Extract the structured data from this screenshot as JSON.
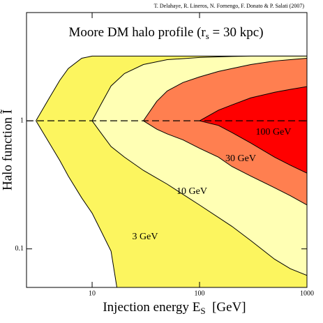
{
  "chart_data": {
    "type": "band",
    "credit": "T. Delahaye, R. Lineros, N. Fornengo, F. Donato & P. Salati (2007)",
    "title": [
      "Moore DM halo profile (r",
      "s",
      " = 30 kpc)"
    ],
    "x_label": [
      "Injection energy E",
      "S",
      "  [GeV]"
    ],
    "y_label": "Halo function Ĩ",
    "log_x": true,
    "log_y": true,
    "xlim": [
      2.45,
      1000
    ],
    "ylim": [
      0.05,
      7
    ],
    "xticks": [
      10,
      100,
      1000
    ],
    "yticks": [
      0.1,
      1
    ],
    "reference_line": 1,
    "x": [
      3,
      4,
      5,
      6,
      8,
      10,
      12,
      15,
      17,
      20,
      30,
      40,
      50,
      70,
      100,
      150,
      200,
      300,
      500,
      700,
      1000
    ],
    "series": [
      {
        "name": "3 GeV",
        "color": "#fcf55f",
        "upper": [
          1,
          1.51,
          2.07,
          2.56,
          3.08,
          3.2,
          3.2,
          3.2,
          3.2,
          3.2,
          3.2,
          3.2,
          3.2,
          3.2,
          3.2,
          3.2,
          3.2,
          3.2,
          3.2,
          3.2,
          3.2
        ],
        "lower": [
          1,
          0.67,
          0.49,
          0.37,
          0.25,
          0.19,
          0.14,
          0.096,
          0.05,
          null,
          null,
          null,
          null,
          null,
          null,
          null,
          null,
          null,
          null,
          null,
          null
        ]
      },
      {
        "name": "10 GeV",
        "color": "#ffffb4",
        "upper": [
          null,
          null,
          null,
          null,
          null,
          1,
          1.33,
          1.87,
          null,
          2.34,
          2.75,
          null,
          3.0,
          null,
          3.12,
          null,
          3.18,
          3.2,
          3.2,
          3.2,
          3.2
        ],
        "lower": [
          null,
          null,
          null,
          null,
          null,
          1,
          0.81,
          0.63,
          null,
          0.52,
          0.41,
          0.345,
          0.32,
          0.27,
          0.22,
          0.176,
          0.15,
          0.116,
          0.083,
          0.07,
          0.062
        ]
      },
      {
        "name": "30 GeV",
        "color": "#ff7f50",
        "upper": [
          null,
          null,
          null,
          null,
          null,
          null,
          null,
          null,
          null,
          null,
          1,
          1.42,
          1.71,
          1.99,
          2.2,
          2.43,
          2.56,
          2.75,
          2.93,
          3.0,
          3.08
        ],
        "lower": [
          null,
          null,
          null,
          null,
          null,
          null,
          null,
          null,
          null,
          null,
          1,
          0.86,
          0.79,
          0.71,
          0.61,
          0.52,
          0.44,
          0.37,
          0.3,
          0.26,
          0.22
        ]
      },
      {
        "name": "100 GeV",
        "color": "#ff0000",
        "upper": [
          null,
          null,
          null,
          null,
          null,
          null,
          null,
          null,
          null,
          null,
          null,
          null,
          null,
          null,
          1,
          1.21,
          1.33,
          1.51,
          1.67,
          1.76,
          1.85
        ],
        "lower": [
          null,
          null,
          null,
          null,
          null,
          null,
          null,
          null,
          null,
          null,
          null,
          null,
          null,
          null,
          1,
          0.92,
          0.81,
          0.67,
          0.52,
          0.45,
          0.39
        ]
      }
    ]
  }
}
